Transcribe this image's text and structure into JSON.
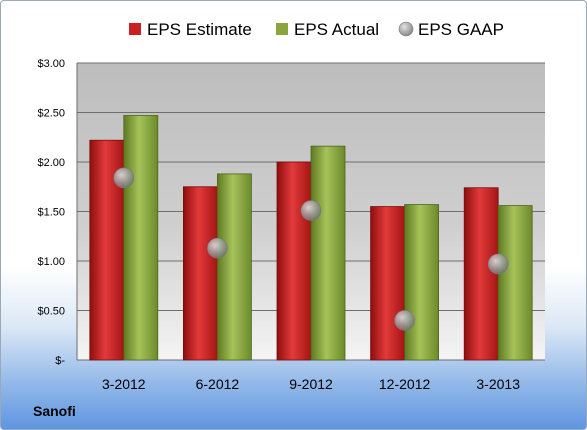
{
  "company": "Sanofi",
  "colors": {
    "estimate": "#cc1f1f",
    "actual": "#8aa63a",
    "gaap": "#9a9a9a"
  },
  "chart_data": {
    "type": "bar",
    "categories": [
      "3-2012",
      "6-2012",
      "9-2012",
      "12-2012",
      "3-2013"
    ],
    "series": [
      {
        "name": "EPS Estimate",
        "type": "bar",
        "values": [
          2.22,
          1.75,
          2.0,
          1.55,
          1.74
        ]
      },
      {
        "name": "EPS Actual",
        "type": "bar",
        "values": [
          2.47,
          1.88,
          2.16,
          1.57,
          1.56
        ]
      },
      {
        "name": "EPS GAAP",
        "type": "scatter",
        "values": [
          1.84,
          1.13,
          1.51,
          0.4,
          0.97
        ]
      }
    ],
    "ylim": [
      0,
      3
    ],
    "yticks": [
      0,
      0.5,
      1,
      1.5,
      2,
      2.5,
      3
    ],
    "ytick_labels": [
      "$-",
      "$0.50",
      "$1.00",
      "$1.50",
      "$2.00",
      "$2.50",
      "$3.00"
    ],
    "grid": true,
    "legend": "top"
  }
}
